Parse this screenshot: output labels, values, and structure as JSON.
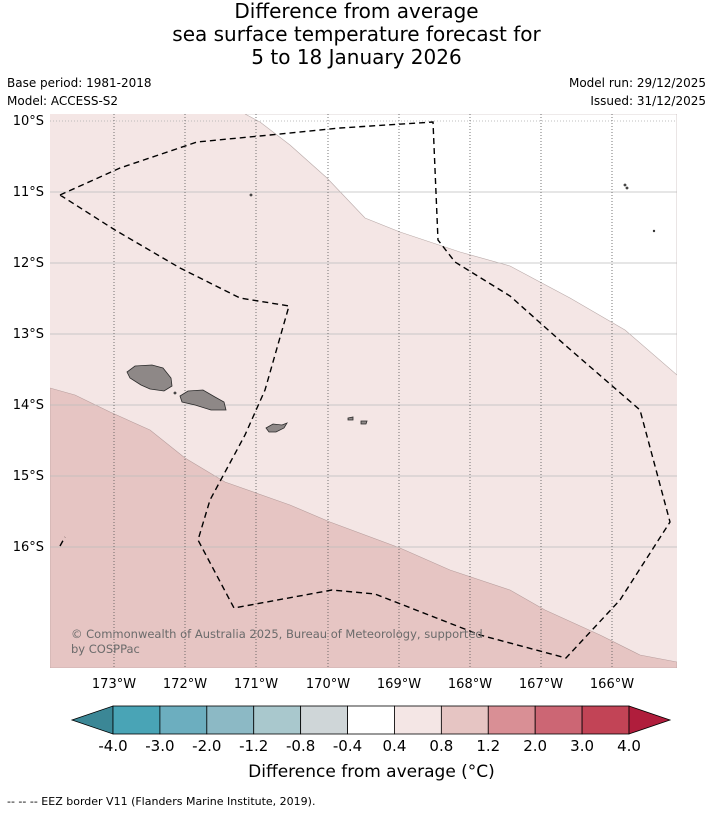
{
  "title": {
    "line1": "Difference from average",
    "line2": "sea surface temperature forecast for",
    "line3": "5 to 18 January 2026"
  },
  "meta": {
    "base_period": "Base period: 1981-2018",
    "model": "Model: ACCESS-S2",
    "model_run": "Model run: 29/12/2025",
    "issued": "Issued: 31/12/2025"
  },
  "map": {
    "lat_labels": [
      "10°S",
      "11°S",
      "12°S",
      "13°S",
      "14°S",
      "15°S",
      "16°S"
    ],
    "lon_labels": [
      "173°W",
      "172°W",
      "171°W",
      "170°W",
      "169°W",
      "168°W",
      "167°W",
      "166°W"
    ],
    "copyright_line1": "© Commonwealth of Australia 2025, Bureau of Meteorology, supported",
    "copyright_line2": "by COSPPac",
    "colors": {
      "band_0_4_to_0_8": "#f4e6e5",
      "band_0_8_to_1_2": "#e6c5c3",
      "land": "#8e8887",
      "eez_border": "#000000"
    }
  },
  "colorbar": {
    "title": "Difference from average (°C)",
    "tick_labels": [
      "-4.0",
      "-3.0",
      "-2.0",
      "-1.2",
      "-0.8",
      "-0.4",
      "0.4",
      "0.8",
      "1.2",
      "2.0",
      "3.0",
      "4.0"
    ],
    "colors": [
      "#3b8796",
      "#49a4b6",
      "#6caebf",
      "#8cb9c5",
      "#a9c8cd",
      "#cfd6d8",
      "#ffffff",
      "#f4e6e5",
      "#e6c5c3",
      "#d98f95",
      "#cc6674",
      "#c24456",
      "#b01d3c"
    ]
  },
  "legend": {
    "eez_text": "-- -- -- EEZ border V11 (Flanders Marine Institute, 2019)."
  }
}
